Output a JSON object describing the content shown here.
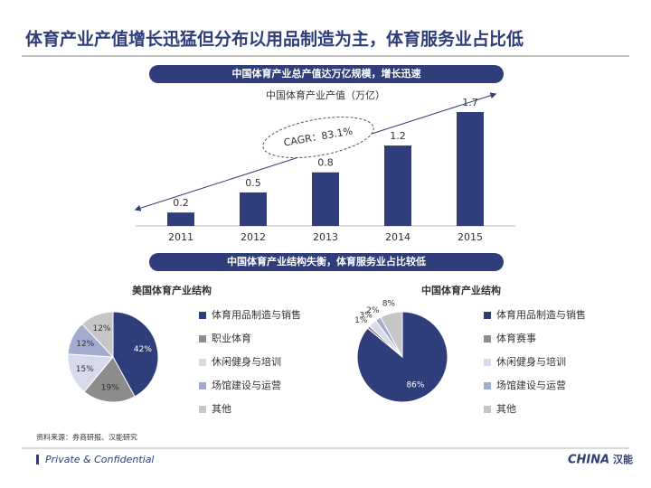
{
  "title": "体育产业产值增长迅猛但分布以用品制造为主，体育服务业占比低",
  "banners": [
    "中国体育产业总产值达万亿规模，增长迅速",
    "中国体育产业结构失衡，体育服务业占比较低"
  ],
  "source": "资料来源：券商研报、汉能研究",
  "footer": "Private & Confidential",
  "logo": {
    "mark": "CHINA",
    "chinese": "汉能"
  },
  "chart_data": [
    {
      "type": "bar",
      "title": "中国体育产业产值（万亿）",
      "categories": [
        "2011",
        "2012",
        "2013",
        "2014",
        "2015"
      ],
      "values": [
        0.2,
        0.5,
        0.8,
        1.2,
        1.7
      ],
      "color": "#2f3d7a",
      "annotation": "CAGR：83.1%"
    },
    {
      "type": "pie",
      "title": "美国体育产业结构",
      "categories": [
        "体育用品制造与销售",
        "职业体育",
        "休闲健身与培训",
        "场馆建设与运营",
        "其他"
      ],
      "values": [
        42,
        19,
        15,
        12,
        12
      ],
      "value_labels": [
        "42%",
        "19%",
        "15%",
        "12%",
        "12%"
      ],
      "colors": [
        "#2f3d7a",
        "#8c8c8c",
        "#d6daea",
        "#a3abd0",
        "#c6c6c6"
      ]
    },
    {
      "type": "pie",
      "title": "中国体育产业结构",
      "categories": [
        "体育用品制造与销售",
        "体育赛事",
        "休闲健身与培训",
        "场馆建设与运营",
        "其他"
      ],
      "values": [
        86,
        1,
        3,
        2,
        8
      ],
      "value_labels": [
        "86%",
        "1%",
        "3%",
        "2%",
        "8%"
      ],
      "colors": [
        "#2f3d7a",
        "#8c8c8c",
        "#d6daea",
        "#a3abd0",
        "#c6c6c6"
      ]
    }
  ]
}
